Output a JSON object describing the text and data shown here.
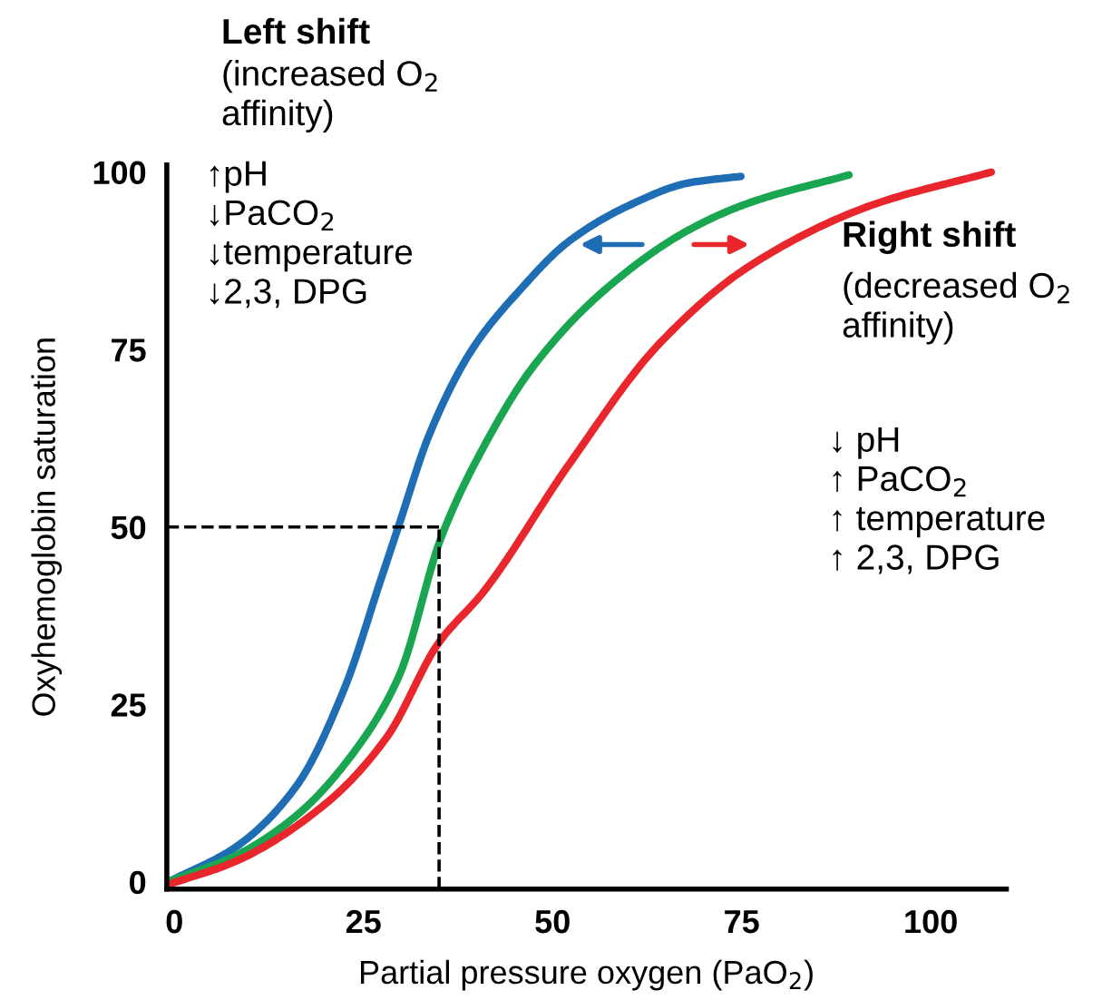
{
  "chart_data": {
    "type": "line",
    "xlabel": "Partial pressure oxygen (PaO$_{2}$)",
    "ylabel": "Oxyhemoglobin saturation",
    "series": [
      {
        "color": "#1f6db5",
        "x": [
          -0.6,
          8.1,
          16.2,
          22.5,
          27.3,
          29.7,
          33.7,
          39.3,
          45.7,
          52.1,
          60.1,
          68.1,
          74.9
        ],
        "values": [
          0.1,
          4.9,
          13.6,
          27.3,
          42.6,
          50.3,
          63,
          74.9,
          83.4,
          90.2,
          95.3,
          98.5,
          99.4
        ]
      },
      {
        "color": "#1aa651",
        "x": [
          -0.6,
          8.1,
          16.2,
          24.1,
          29.7,
          35.3,
          40.9,
          47.3,
          56.9,
          68.1,
          76.1,
          89.2
        ],
        "values": [
          0.1,
          3.7,
          9.4,
          18.8,
          29,
          48.6,
          61.3,
          72.4,
          83.4,
          91.9,
          95.7,
          99.6
        ]
      },
      {
        "color": "#e8262b",
        "x": [
          -0.6,
          8.1,
          20.1,
          28.1,
          34.9,
          40.9,
          52.1,
          64.1,
          76.1,
          92.1,
          108
        ],
        "values": [
          -0.3,
          2.9,
          11.1,
          20.4,
          33.6,
          40.9,
          58.7,
          75.8,
          86.8,
          95.3,
          100
        ]
      }
    ],
    "xlim": [
      -1,
      110
    ],
    "ylim": [
      -1,
      101
    ],
    "xticks": [
      0,
      25,
      50,
      75,
      100
    ],
    "yticks": [
      0,
      25,
      50,
      75,
      100
    ],
    "ref_lines": [
      {
        "axis": "x",
        "value": 35,
        "color": "#000000",
        "line_style": "dashed"
      },
      {
        "axis": "y",
        "value": 50,
        "color": "#000000",
        "line_style": "dashed"
      }
    ],
    "annotations": [
      "Left shift",
      "(increased O$_{2}$\naffinity)",
      "↑pH\n↓PaCO$_{2}$\n↓temperature\n↓2,3, DPG",
      "Right shift",
      "(decreased O$_{2}$\naffinity)",
      "↓ pH\n↑ PaCO$_{2}$\n↑ temperature\n↑ 2,3, DPG"
    ],
    "line_style": "solid",
    "marker": "none",
    "grid": false
  }
}
